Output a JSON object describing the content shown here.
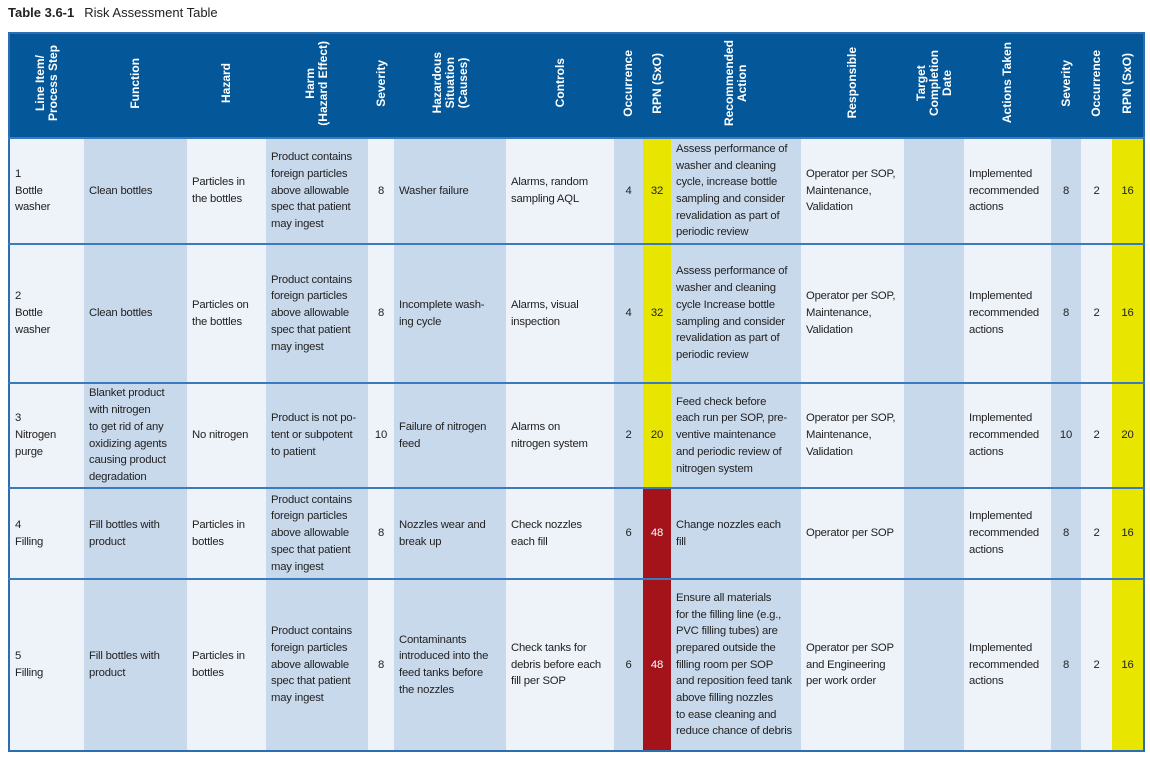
{
  "caption": {
    "label": "Table 3.6-1",
    "title": "Risk Assessment Table"
  },
  "colors": {
    "header": "#04589a",
    "light": "#eef2f9",
    "shaded": "#c9d9ec",
    "rpn_medium": "#e8e600",
    "rpn_high": "#a4121a"
  },
  "headers": [
    "Line Item/\nProcess Step",
    "Function",
    "Hazard",
    "Harm\n(Hazard Effect)",
    "Severity",
    "Hazardous\nSituation\n(Causes)",
    "Controls",
    "Occurrence",
    "RPN (SxO)",
    "Recommended\nAction",
    "Responsible",
    "Target\nCompletion\nDate",
    "Actions Taken",
    "Severity",
    "Occurrence",
    "RPN (SxO)"
  ],
  "rows": [
    {
      "cells": [
        "1\nBottle\nwasher",
        "Clean bottles",
        "Particles in\nthe bottles",
        "Product contains\nforeign particles\nabove allowable\nspec that patient\nmay ingest",
        "8",
        "Washer failure",
        "Alarms, random\nsampling AQL",
        "4",
        "32",
        "Assess performance of\nwasher and cleaning\ncycle, increase bottle\nsampling and consider\nrevalidation as part of\nperiodic review",
        "Operator per SOP,\nMaintenance,\nValidation",
        "",
        "Implemented\nrecommended\nactions",
        "8",
        "2",
        "16"
      ],
      "rpn_level": "yellow",
      "rpn2_level": "yellow"
    },
    {
      "cells": [
        "2\nBottle\nwasher",
        "Clean bottles",
        "Particles on\nthe bottles",
        "Product contains\nforeign particles\nabove allowable\nspec that patient\nmay ingest",
        "8",
        "Incomplete wash-\ning cycle",
        "Alarms, visual\ninspection",
        "4",
        "32",
        "Assess performance of\nwasher and cleaning\ncycle Increase bottle\nsampling and consider\nrevalidation as part of\nperiodic review",
        "Operator per SOP,\nMaintenance,\nValidation",
        "",
        "Implemented\nrecommended\nactions",
        "8",
        "2",
        "16"
      ],
      "rpn_level": "yellow",
      "rpn2_level": "yellow"
    },
    {
      "cells": [
        "3\nNitrogen\npurge",
        "Blanket product\nwith nitrogen\nto get rid of any\noxidizing agents\ncausing product\ndegradation",
        "No nitrogen",
        "Product is not po-\ntent or subpotent\nto patient",
        "10",
        "Failure of nitrogen\nfeed",
        "Alarms on\nnitrogen system",
        "2",
        "20",
        "Feed check before\neach run per SOP, pre-\nventive maintenance\nand periodic review of\nnitrogen system",
        "Operator per SOP,\nMaintenance,\nValidation",
        "",
        "Implemented\nrecommended\nactions",
        "10",
        "2",
        "20"
      ],
      "rpn_level": "yellow",
      "rpn2_level": "yellow"
    },
    {
      "cells": [
        "4\nFilling",
        "Fill bottles with\nproduct",
        "Particles in\nbottles",
        "Product contains\nforeign particles\nabove allowable\nspec that patient\nmay ingest",
        "8",
        "Nozzles wear and\nbreak up",
        "Check nozzles\neach fill",
        "6",
        "48",
        "Change nozzles each\nfill",
        "Operator per SOP",
        "",
        "Implemented\nrecommended\nactions",
        "8",
        "2",
        "16"
      ],
      "rpn_level": "red",
      "rpn2_level": "yellow"
    },
    {
      "cells": [
        "5\nFilling",
        "Fill bottles with\nproduct",
        "Particles in\nbottles",
        "Product contains\nforeign particles\nabove allowable\nspec that patient\nmay ingest",
        "8",
        "Contaminants\nintroduced into the\nfeed tanks before\nthe nozzles",
        "Check tanks for\ndebris before each\nfill per SOP",
        "6",
        "48",
        "Ensure all materials\nfor the filling line (e.g.,\nPVC filling tubes) are\nprepared outside the\nfilling room per SOP\nand reposition feed tank\nabove filling nozzles\nto ease cleaning and\nreduce chance of debris",
        "Operator per SOP\nand Engineering\nper work order",
        "",
        "Implemented\nrecommended\nactions",
        "8",
        "2",
        "16"
      ],
      "rpn_level": "red",
      "rpn2_level": "yellow"
    }
  ]
}
